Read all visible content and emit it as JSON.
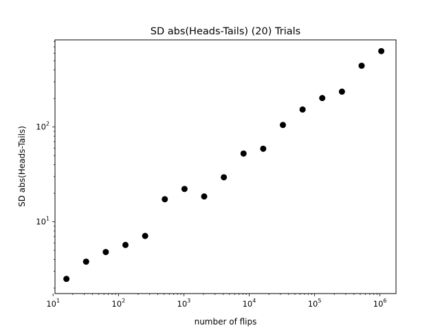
{
  "chart_data": {
    "type": "scatter",
    "title": "SD  abs(Heads-Tails) (20) Trials",
    "xlabel": "number of flips",
    "ylabel": "SD  abs(Heads-Tails)",
    "xscale": "log",
    "yscale": "log",
    "xlim": [
      10.7,
      1760000
    ],
    "ylim": [
      1.75,
      830
    ],
    "grid": false,
    "legend": "none",
    "marker_color": "#000000",
    "x_ticks": [
      {
        "value": 10,
        "base": "10",
        "exp": "1"
      },
      {
        "value": 100,
        "base": "10",
        "exp": "2"
      },
      {
        "value": 1000,
        "base": "10",
        "exp": "3"
      },
      {
        "value": 10000,
        "base": "10",
        "exp": "4"
      },
      {
        "value": 100000,
        "base": "10",
        "exp": "5"
      },
      {
        "value": 1000000,
        "base": "10",
        "exp": "6"
      }
    ],
    "y_ticks": [
      {
        "value": 10,
        "base": "10",
        "exp": "1"
      },
      {
        "value": 100,
        "base": "10",
        "exp": "2"
      }
    ],
    "x": [
      16,
      32,
      64,
      128,
      256,
      512,
      1024,
      2048,
      4096,
      8192,
      16384,
      32768,
      65536,
      131072,
      262144,
      524288,
      1048576
    ],
    "y": [
      2.5,
      3.8,
      4.8,
      5.7,
      7.1,
      17.3,
      22.2,
      18.5,
      29.5,
      52.5,
      59,
      105,
      153,
      202,
      236,
      443,
      632
    ]
  }
}
